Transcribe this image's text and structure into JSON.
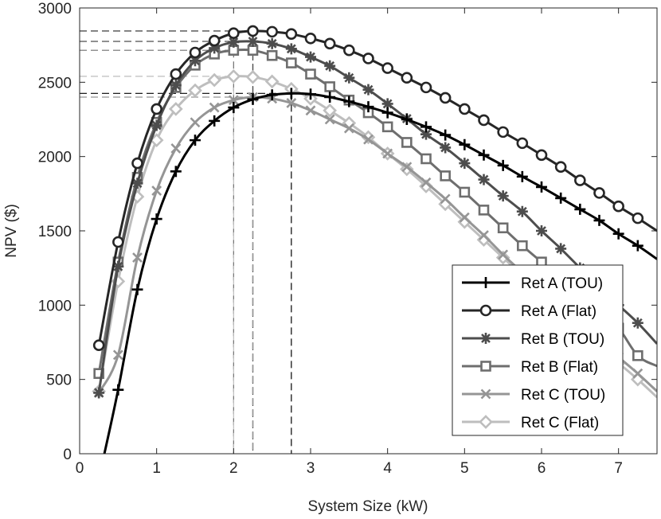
{
  "chart_data": {
    "type": "line",
    "title": "",
    "xlabel": "System Size (kW)",
    "ylabel": "NPV ($)",
    "xlim": [
      0,
      7.5
    ],
    "ylim": [
      0,
      3000
    ],
    "xticks": [
      "0",
      "1",
      "2",
      "3",
      "4",
      "5",
      "6",
      "7"
    ],
    "yticks": [
      "0",
      "500",
      "1000",
      "1500",
      "2000",
      "2500",
      "3000"
    ],
    "grid": false,
    "legend_position": "bottom-right",
    "marker_x": [
      0.25,
      0.5,
      0.75,
      1.0,
      1.25,
      1.5,
      1.75,
      2.0,
      2.25,
      2.5,
      2.75,
      3.0,
      3.25,
      3.5,
      3.75,
      4.0,
      4.25,
      4.5,
      4.75,
      5.0,
      5.25,
      5.5,
      5.75,
      6.0,
      6.25,
      6.5,
      6.75,
      7.0,
      7.25
    ],
    "series": [
      {
        "name": "Ret A (TOU)",
        "color": "#000000",
        "marker": "plus",
        "x": [
          0.3,
          0.5,
          0.75,
          1.0,
          1.25,
          1.5,
          1.75,
          2.0,
          2.25,
          2.5,
          2.75,
          3.0,
          3.25,
          3.5,
          3.75,
          4.0,
          4.25,
          4.5,
          4.75,
          5.0,
          5.25,
          5.5,
          5.75,
          6.0,
          6.25,
          6.5,
          6.75,
          7.0,
          7.25,
          7.5
        ],
        "values": [
          -50,
          430,
          1105,
          1580,
          1900,
          2110,
          2240,
          2330,
          2385,
          2415,
          2425,
          2420,
          2400,
          2370,
          2335,
          2295,
          2250,
          2200,
          2145,
          2080,
          2010,
          1940,
          1865,
          1795,
          1720,
          1645,
          1570,
          1480,
          1400,
          1310
        ]
      },
      {
        "name": "Ret A (Flat)",
        "color": "#262626",
        "marker": "circle",
        "x": [
          0.25,
          0.5,
          0.75,
          1.0,
          1.25,
          1.5,
          1.75,
          2.0,
          2.25,
          2.5,
          2.75,
          3.0,
          3.25,
          3.5,
          3.75,
          4.0,
          4.25,
          4.5,
          4.75,
          5.0,
          5.25,
          5.5,
          5.75,
          6.0,
          6.25,
          6.5,
          6.75,
          7.0,
          7.25,
          7.5
        ],
        "values": [
          730,
          1425,
          1955,
          2320,
          2555,
          2700,
          2780,
          2830,
          2845,
          2840,
          2825,
          2795,
          2760,
          2715,
          2660,
          2595,
          2530,
          2465,
          2395,
          2320,
          2245,
          2165,
          2090,
          2010,
          1930,
          1840,
          1755,
          1665,
          1585,
          1500
        ]
      },
      {
        "name": "Ret B (TOU)",
        "color": "#4d4d4d",
        "marker": "star",
        "x": [
          0.25,
          0.5,
          0.75,
          1.0,
          1.25,
          1.5,
          1.75,
          2.0,
          2.25,
          2.5,
          2.75,
          3.0,
          3.25,
          3.5,
          3.75,
          4.0,
          4.25,
          4.5,
          4.75,
          5.0,
          5.25,
          5.5,
          5.75,
          6.0,
          6.25,
          6.5,
          6.75,
          7.0,
          7.25,
          7.5
        ],
        "values": [
          410,
          1260,
          1820,
          2210,
          2480,
          2645,
          2730,
          2770,
          2775,
          2760,
          2725,
          2670,
          2610,
          2530,
          2450,
          2355,
          2255,
          2150,
          2060,
          1955,
          1845,
          1735,
          1630,
          1500,
          1380,
          1250,
          1120,
          1000,
          880,
          740
        ]
      },
      {
        "name": "Ret B (Flat)",
        "color": "#6e6e6e",
        "marker": "square",
        "x": [
          0.25,
          0.5,
          0.75,
          1.0,
          1.25,
          1.5,
          1.75,
          2.0,
          2.25,
          2.5,
          2.75,
          3.0,
          3.25,
          3.5,
          3.75,
          4.0,
          4.25,
          4.5,
          4.75,
          5.0,
          5.25,
          5.5,
          5.75,
          6.0,
          6.25,
          6.5,
          6.75,
          7.0,
          7.25,
          7.5
        ],
        "values": [
          540,
          1290,
          1860,
          2230,
          2465,
          2615,
          2690,
          2715,
          2715,
          2680,
          2630,
          2555,
          2470,
          2380,
          2295,
          2200,
          2095,
          1985,
          1870,
          1760,
          1640,
          1520,
          1400,
          1290,
          1175,
          1065,
          950,
          845,
          660,
          590
        ]
      },
      {
        "name": "Ret C (TOU)",
        "color": "#959595",
        "marker": "x",
        "x": [
          0.25,
          0.5,
          0.75,
          1.0,
          1.25,
          1.5,
          1.75,
          2.0,
          2.25,
          2.5,
          2.75,
          3.0,
          3.25,
          3.5,
          3.75,
          4.0,
          4.25,
          4.5,
          4.75,
          5.0,
          5.25,
          5.5,
          5.75,
          6.0,
          6.25,
          6.5,
          6.75,
          7.0,
          7.25,
          7.5
        ],
        "values": [
          410,
          665,
          1320,
          1770,
          2055,
          2230,
          2330,
          2380,
          2400,
          2390,
          2360,
          2310,
          2250,
          2190,
          2115,
          2020,
          1930,
          1825,
          1715,
          1590,
          1470,
          1340,
          1220,
          1100,
          980,
          870,
          760,
          650,
          540,
          420
        ]
      },
      {
        "name": "Ret C (Flat)",
        "color": "#bebebe",
        "marker": "diamond",
        "x": [
          0.25,
          0.5,
          0.75,
          1.0,
          1.25,
          1.5,
          1.75,
          2.0,
          2.25,
          2.5,
          2.75,
          3.0,
          3.25,
          3.5,
          3.75,
          4.0,
          4.25,
          4.5,
          4.75,
          5.0,
          5.25,
          5.5,
          5.75,
          6.0,
          6.25,
          6.5,
          6.75,
          7.0,
          7.25,
          7.5
        ],
        "values": [
          420,
          1160,
          1730,
          2110,
          2320,
          2445,
          2515,
          2540,
          2535,
          2505,
          2455,
          2390,
          2310,
          2225,
          2130,
          2020,
          1915,
          1800,
          1680,
          1560,
          1440,
          1320,
          1200,
          1080,
          960,
          840,
          720,
          610,
          500,
          380
        ]
      }
    ],
    "reference_lines": [
      {
        "series": "Ret A (TOU)",
        "x": 2.75,
        "y": 2425
      },
      {
        "series": "Ret A (Flat)",
        "x": 2.25,
        "y": 2845
      },
      {
        "series": "Ret B (TOU)",
        "x": 2.25,
        "y": 2775
      },
      {
        "series": "Ret B (Flat)",
        "x": 2.0,
        "y": 2715
      },
      {
        "series": "Ret C (TOU)",
        "x": 2.25,
        "y": 2400
      },
      {
        "series": "Ret C (Flat)",
        "x": 2.0,
        "y": 2540
      }
    ]
  }
}
